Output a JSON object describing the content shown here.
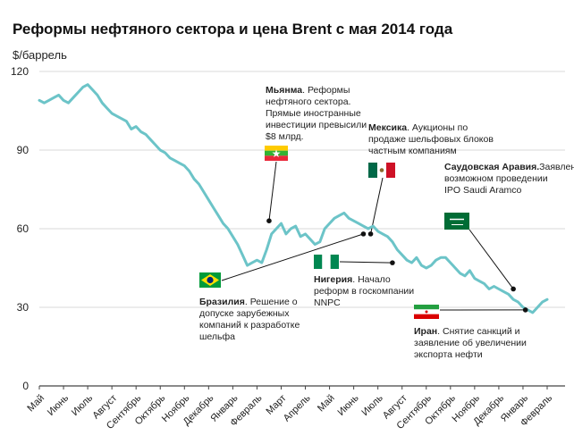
{
  "chart_data": {
    "type": "line",
    "title": "Реформы нефтяного сектора и цена Brent с мая 2014 года",
    "ylabel": "$/баррель",
    "ylim": [
      0,
      120
    ],
    "yticks": [
      0,
      30,
      60,
      90,
      120
    ],
    "grid": "horizontal",
    "categories": [
      "Май",
      "Июнь",
      "Июль",
      "Август",
      "Сентябрь",
      "Октябрь",
      "Ноябрь",
      "Декабрь",
      "Январь",
      "Февраль",
      "Март",
      "Апрель",
      "Май",
      "Июнь",
      "Июль",
      "Август",
      "Сентябрь",
      "Октябрь",
      "Ноябрь",
      "Декабрь",
      "Январь",
      "Февраль"
    ],
    "series": [
      {
        "color": "#6cc4c8",
        "x": [
          0,
          0.2,
          0.4,
          0.6,
          0.8,
          1.0,
          1.2,
          1.4,
          1.6,
          1.8,
          2.0,
          2.2,
          2.4,
          2.6,
          2.8,
          3.0,
          3.2,
          3.4,
          3.6,
          3.8,
          4.0,
          4.2,
          4.4,
          4.6,
          4.8,
          5.0,
          5.2,
          5.4,
          5.6,
          5.8,
          6.0,
          6.2,
          6.4,
          6.6,
          6.8,
          7.0,
          7.2,
          7.4,
          7.6,
          7.8,
          8.0,
          8.2,
          8.4,
          8.6,
          8.8,
          9.0,
          9.2,
          9.4,
          9.6,
          9.8,
          10.0,
          10.2,
          10.4,
          10.6,
          10.8,
          11.0,
          11.2,
          11.4,
          11.6,
          11.8,
          12.0,
          12.2,
          12.4,
          12.6,
          12.8,
          13.0,
          13.2,
          13.4,
          13.6,
          13.8,
          14.0,
          14.2,
          14.4,
          14.6,
          14.8,
          15.0,
          15.2,
          15.4,
          15.6,
          15.8,
          16.0,
          16.2,
          16.4,
          16.6,
          16.8,
          17.0,
          17.2,
          17.4,
          17.6,
          17.8,
          18.0,
          18.2,
          18.4,
          18.6,
          18.8,
          19.0,
          19.2,
          19.4,
          19.6,
          19.8,
          20.0,
          20.2,
          20.4,
          20.6,
          20.8,
          21.0
        ],
        "y": [
          109,
          108,
          109,
          110,
          111,
          109,
          108,
          110,
          112,
          114,
          115,
          113,
          111,
          108,
          106,
          104,
          103,
          102,
          101,
          98,
          99,
          97,
          96,
          94,
          92,
          90,
          89,
          87,
          86,
          85,
          84,
          82,
          79,
          77,
          74,
          71,
          68,
          65,
          62,
          60,
          57,
          54,
          50,
          46,
          47,
          48,
          47,
          52,
          58,
          60,
          62,
          58,
          60,
          61,
          57,
          58,
          56,
          54,
          55,
          60,
          62,
          64,
          65,
          66,
          64,
          63,
          62,
          61,
          60,
          61,
          59,
          58,
          57,
          55,
          52,
          50,
          48,
          47,
          49,
          46,
          45,
          46,
          48,
          49,
          49,
          47,
          45,
          43,
          42,
          44,
          41,
          40,
          39,
          37,
          38,
          37,
          36,
          35,
          33,
          32,
          30,
          29,
          28,
          30,
          32,
          33
        ]
      }
    ],
    "annotations": [
      {
        "bold": "Мьянма",
        "lines": [
          ". Реформы",
          "нефтяного сектора.",
          "Прямые иностранные",
          "инвестиции превысили",
          "$8 млрд."
        ],
        "flag": "myanmar",
        "point": [
          9.5,
          63
        ]
      },
      {
        "bold": "Мексика",
        "lines": [
          ". Аукционы по",
          "продаже шельфовых блоков",
          "частным компаниям"
        ],
        "flag": "mexico",
        "point": [
          13.7,
          58
        ]
      },
      {
        "bold": "Саудовская Аравия.",
        "lines": [
          "Заявление о",
          "возможном проведении",
          "IPO Saudi Aramco"
        ],
        "flag": "saudi",
        "point": [
          19.6,
          37
        ]
      },
      {
        "bold": "Бразилия",
        "lines": [
          ". Решение о",
          "допуске зарубежных",
          "компаний к разработке",
          "шельфа"
        ],
        "flag": "brazil",
        "point": [
          13.4,
          58
        ]
      },
      {
        "bold": "Нигерия",
        "lines": [
          ". Начало",
          "реформ в госкомпании",
          "NNPC"
        ],
        "flag": "nigeria",
        "point": [
          14.6,
          47
        ]
      },
      {
        "bold": "Иран",
        "lines": [
          ". Снятие санкций и",
          "заявление об увеличении",
          "экспорта нефти"
        ],
        "flag": "iran",
        "point": [
          20.1,
          29
        ]
      }
    ]
  }
}
